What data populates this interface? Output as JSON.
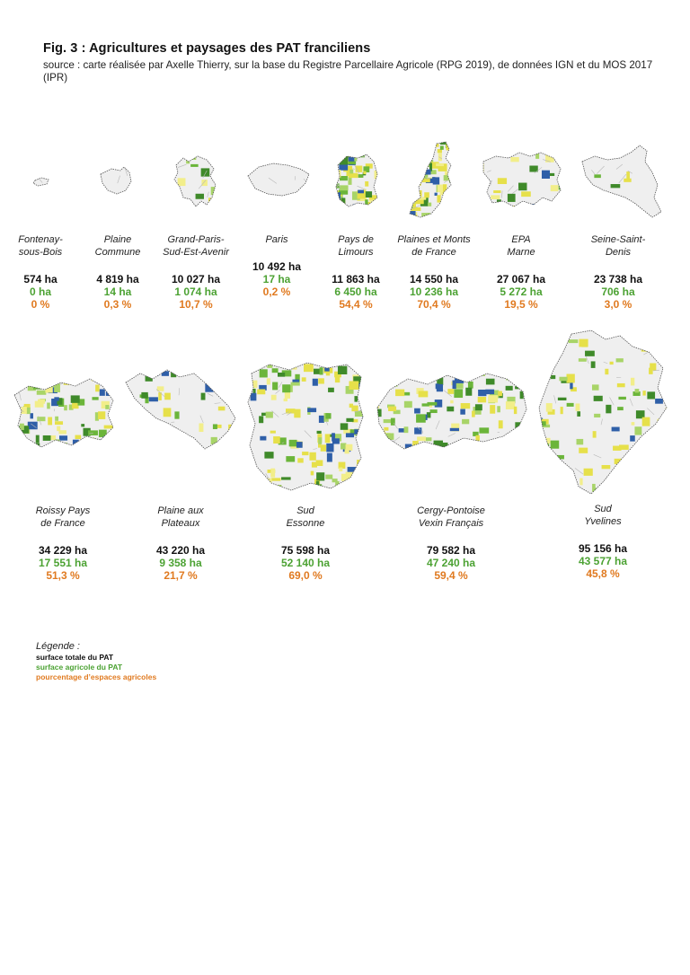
{
  "header": {
    "title": "Fig. 3 :  Agricultures et paysages des PAT franciliens",
    "source": "source : carte réalisée par Axelle Thierry, sur la base du Registre Parcellaire Agricole (RPG 2019), de données IGN et du MOS 2017 (IPR)"
  },
  "colors": {
    "total": "#111111",
    "agricole": "#4ca233",
    "pourcentage": "#e07a20",
    "map_green": "#6bb53a",
    "map_yellow": "#e6e04a"
  },
  "pats": [
    {
      "name_line1": "Fontenay-",
      "name_line2": "sous-Bois",
      "total": "574 ha",
      "agricole": "0 ha",
      "pourcentage": "0 %",
      "agri_share": 0.0
    },
    {
      "name_line1": "Plaine",
      "name_line2": "Commune",
      "total": "4 819 ha",
      "agricole": "14 ha",
      "pourcentage": "0,3 %",
      "agri_share": 0.003
    },
    {
      "name_line1": "Grand-Paris-",
      "name_line2": "Sud-Est-Avenir",
      "total": "10 027 ha",
      "agricole": "1 074 ha",
      "pourcentage": "10,7 %",
      "agri_share": 0.107
    },
    {
      "name_line1": "Paris",
      "name_line2": "",
      "total": "10 492 ha",
      "agricole": "17 ha",
      "pourcentage": "0,2 %",
      "agri_share": 0.002
    },
    {
      "name_line1": "Pays de",
      "name_line2": "Limours",
      "total": "11 863 ha",
      "agricole": "6 450 ha",
      "pourcentage": "54,4 %",
      "agri_share": 0.544
    },
    {
      "name_line1": "Plaines et Monts",
      "name_line2": "de France",
      "total": "14 550 ha",
      "agricole": "10 236 ha",
      "pourcentage": "70,4 %",
      "agri_share": 0.704
    },
    {
      "name_line1": "EPA",
      "name_line2": "Marne",
      "total": "27 067 ha",
      "agricole": "5 272 ha",
      "pourcentage": "19,5 %",
      "agri_share": 0.195
    },
    {
      "name_line1": "Seine-Saint-",
      "name_line2": "Denis",
      "total": "23 738 ha",
      "agricole": "706 ha",
      "pourcentage": "3,0 %",
      "agri_share": 0.03
    },
    {
      "name_line1": "Roissy Pays",
      "name_line2": "de France",
      "total": "34 229 ha",
      "agricole": "17 551 ha",
      "pourcentage": "51,3 %",
      "agri_share": 0.513
    },
    {
      "name_line1": "Plaine aux",
      "name_line2": "Plateaux",
      "total": "43 220 ha",
      "agricole": "9 358 ha",
      "pourcentage": "21,7 %",
      "agri_share": 0.217
    },
    {
      "name_line1": "Sud",
      "name_line2": "Essonne",
      "total": "75 598 ha",
      "agricole": "52 140 ha",
      "pourcentage": "69,0 %",
      "agri_share": 0.69
    },
    {
      "name_line1": "Cergy-Pontoise",
      "name_line2": "Vexin Français",
      "total": "79 582 ha",
      "agricole": "47 240 ha",
      "pourcentage": "59,4 %",
      "agri_share": 0.594
    },
    {
      "name_line1": "Sud",
      "name_line2": "Yvelines",
      "total": "95 156 ha",
      "agricole": "43 577 ha",
      "pourcentage": "45,8 %",
      "agri_share": 0.458
    }
  ],
  "legend": {
    "title": "Légende :",
    "total": "surface totale du PAT",
    "agricole": "surface agricole du PAT",
    "pourcentage": "pourcentage d’espaces agricoles"
  }
}
